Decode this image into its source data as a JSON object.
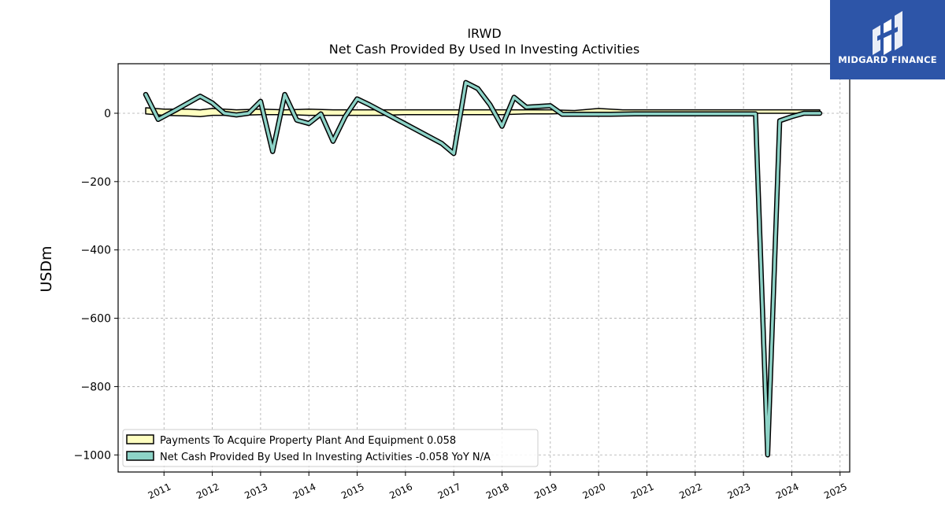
{
  "brand": {
    "name": "MIDGARD FINANCE",
    "logo_icon": "midgard-logo-icon",
    "bg_color": "#2d55a8"
  },
  "chart_data": {
    "type": "line",
    "title": "IRWD",
    "subtitle": "Net Cash Provided By Used In Investing Activities",
    "xlabel": "",
    "ylabel": "USDm",
    "xlim": [
      2010.05,
      2025.2
    ],
    "ylim": [
      -1050,
      145
    ],
    "x_ticks": [
      2011,
      2012,
      2013,
      2014,
      2015,
      2016,
      2017,
      2018,
      2019,
      2020,
      2021,
      2022,
      2023,
      2024,
      2025
    ],
    "y_ticks": [
      0,
      -200,
      -400,
      -600,
      -800,
      -1000
    ],
    "grid": true,
    "legend_position": "lower-left",
    "series": [
      {
        "name": "Payments To Acquire Property Plant And Equipment",
        "legend_value": "0.058",
        "color": "#ffffc0",
        "type": "band",
        "x": [
          2010.62,
          2011.0,
          2011.5,
          2011.75,
          2012.0,
          2012.5,
          2013.0,
          2013.5,
          2014.0,
          2014.5,
          2015.0,
          2015.5,
          2016.0,
          2016.5,
          2017.0,
          2017.5,
          2018.0,
          2018.5,
          2019.0,
          2019.5,
          2020.0,
          2020.5,
          2021.0,
          2022.0,
          2023.0,
          2023.5,
          2024.0,
          2024.58
        ],
        "upper": [
          16,
          12,
          12,
          10,
          14,
          10,
          12,
          10,
          12,
          10,
          10,
          10,
          10,
          10,
          10,
          10,
          10,
          10,
          10,
          8,
          14,
          10,
          10,
          10,
          10,
          10,
          10,
          10
        ],
        "lower": [
          -2,
          -6,
          -8,
          -10,
          -6,
          -6,
          -4,
          -4,
          -6,
          -6,
          -6,
          -6,
          -4,
          -4,
          -4,
          -4,
          -4,
          -2,
          -2,
          0,
          -2,
          0,
          0,
          0,
          0,
          0,
          0,
          0
        ]
      },
      {
        "name": "Net Cash Provided By Used In Investing Activities",
        "legend_value": "-0.058 YoY N/A",
        "color": "#8dd3c7",
        "type": "line",
        "x": [
          2010.62,
          2010.88,
          2011.25,
          2011.75,
          2012.0,
          2012.25,
          2012.5,
          2012.75,
          2013.0,
          2013.25,
          2013.5,
          2013.75,
          2014.0,
          2014.25,
          2014.5,
          2014.75,
          2015.0,
          2015.25,
          2016.75,
          2017.0,
          2017.25,
          2017.5,
          2017.75,
          2018.0,
          2018.25,
          2018.5,
          2019.0,
          2019.25,
          2019.75,
          2020.25,
          2020.75,
          2021.0,
          2021.5,
          2022.0,
          2022.5,
          2023.0,
          2023.25,
          2023.5,
          2023.75,
          2024.0,
          2024.25,
          2024.58
        ],
        "y": [
          55,
          -18,
          10,
          50,
          30,
          0,
          -5,
          0,
          35,
          -112,
          55,
          -20,
          -30,
          -2,
          -82,
          -10,
          42,
          25,
          -88,
          -118,
          90,
          72,
          25,
          -38,
          47,
          18,
          22,
          -3,
          -3,
          -3,
          -2,
          -2,
          -2,
          -2,
          -2,
          -2,
          -2,
          -1000,
          -22,
          -10,
          0,
          0
        ]
      }
    ]
  }
}
